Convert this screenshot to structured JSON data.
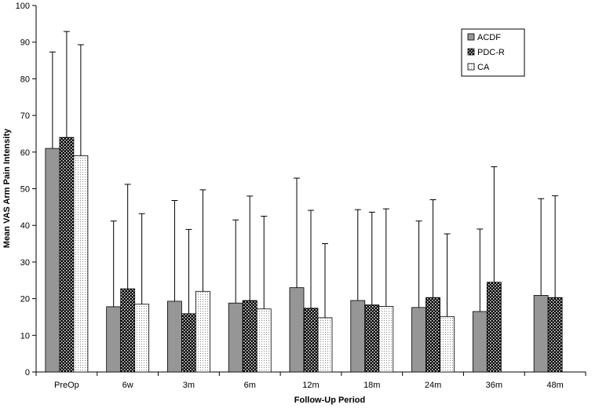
{
  "chart_data": {
    "type": "bar",
    "xlabel": "Follow-Up Period",
    "ylabel": "Mean VAS Arm Pain Intensity",
    "categories": [
      "PreOp",
      "6w",
      "3m",
      "6m",
      "12m",
      "18m",
      "24m",
      "36m",
      "48m"
    ],
    "series": [
      {
        "name": "ACDF",
        "color": "#969696",
        "pattern": "solid",
        "values": [
          61,
          17.8,
          19.3,
          18.8,
          23,
          19.5,
          17.6,
          16.5,
          20.9
        ],
        "errors": [
          26.3,
          23.4,
          27.5,
          22.7,
          29.9,
          24.8,
          23.6,
          22.5,
          26.4
        ]
      },
      {
        "name": "PDC-R",
        "color": "#000000",
        "pattern": "dots",
        "values": [
          64,
          22.7,
          15.9,
          19.5,
          17.4,
          18.3,
          20.3,
          24.5,
          20.3
        ],
        "errors": [
          28.9,
          28.5,
          23.0,
          28.5,
          26.7,
          25.3,
          26.7,
          31.5,
          27.8
        ]
      },
      {
        "name": "CA",
        "color": "#808080",
        "pattern": "stipple",
        "values": [
          59,
          18.5,
          22,
          17.2,
          14.8,
          17.9,
          15.1,
          null,
          null
        ],
        "errors": [
          30.3,
          24.7,
          27.7,
          25.3,
          20.2,
          26.6,
          22.6,
          null,
          null
        ]
      }
    ],
    "ylim": [
      0,
      100
    ],
    "yticks": [
      0,
      10,
      20,
      30,
      40,
      50,
      60,
      70,
      80,
      90,
      100
    ],
    "grid": false,
    "legend": "top-right"
  }
}
